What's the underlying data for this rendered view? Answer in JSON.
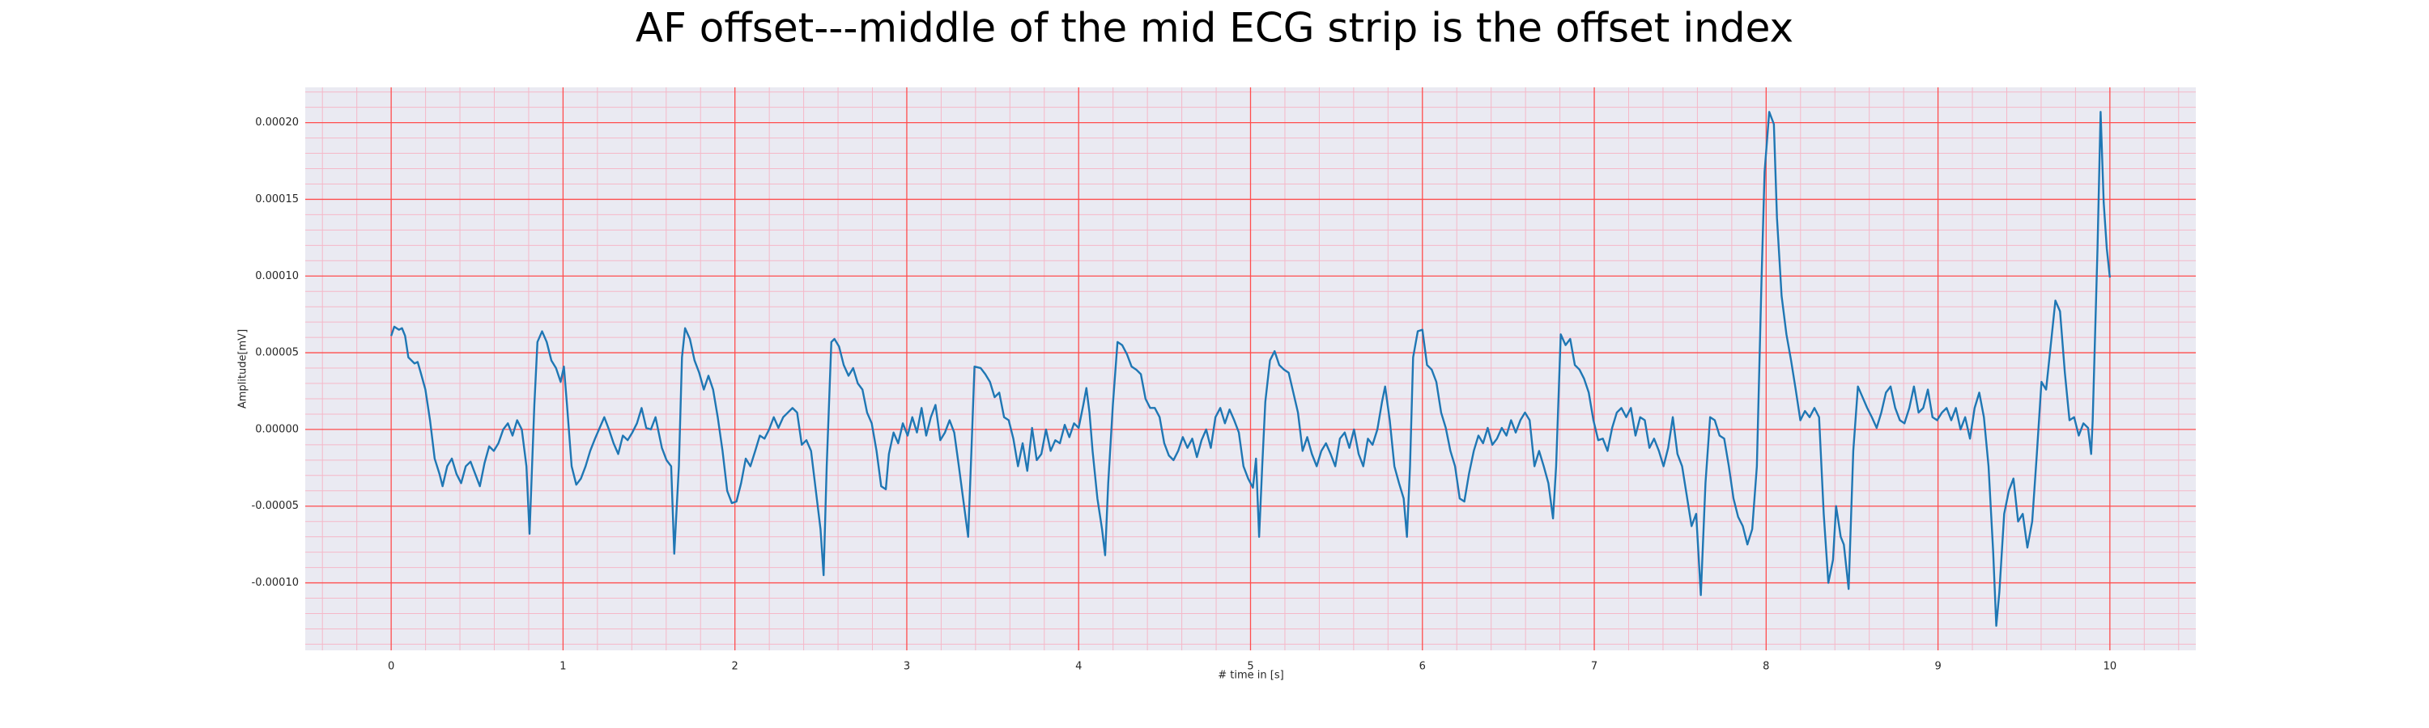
{
  "chart_data": {
    "type": "line",
    "title": "AF offset---middle of the mid ECG strip is the offset index",
    "xlabel": "# time in [s]",
    "ylabel": "Amplitude[mV]",
    "color": "#1f77b4",
    "major_grid_color": "#ff4d4d",
    "minor_grid_color": "#f5b8c8",
    "grid": true,
    "minor_grid": true,
    "xlim": [
      -0.5,
      10.5
    ],
    "ylim": [
      -0.000144,
      0.000223
    ],
    "xticks": [
      0,
      1,
      2,
      3,
      4,
      5,
      6,
      7,
      8,
      9,
      10
    ],
    "yticks": [
      {
        "value": -0.0001,
        "label": "-0.00010"
      },
      {
        "value": -5e-05,
        "label": "-0.00005"
      },
      {
        "value": 0,
        "label": "0.00000"
      },
      {
        "value": 5e-05,
        "label": "0.00005"
      },
      {
        "value": 0.0001,
        "label": "0.00010"
      },
      {
        "value": 0.00015,
        "label": "0.00015"
      },
      {
        "value": 0.0002,
        "label": "0.00020"
      }
    ],
    "x": [
      0,
      0.018,
      0.045,
      0.063,
      0.081,
      0.1,
      0.118,
      0.136,
      0.154,
      0.172,
      0.199,
      0.226,
      0.253,
      0.281,
      0.299,
      0.326,
      0.353,
      0.38,
      0.407,
      0.434,
      0.462,
      0.489,
      0.516,
      0.543,
      0.57,
      0.597,
      0.624,
      0.652,
      0.679,
      0.706,
      0.733,
      0.76,
      0.787,
      0.805,
      0.833,
      0.851,
      0.878,
      0.905,
      0.932,
      0.959,
      0.986,
      1.005,
      1.023,
      1.05,
      1.077,
      1.104,
      1.131,
      1.158,
      1.186,
      1.213,
      1.24,
      1.267,
      1.294,
      1.321,
      1.348,
      1.376,
      1.403,
      1.43,
      1.457,
      1.484,
      1.511,
      1.538,
      1.575,
      1.602,
      1.629,
      1.647,
      1.674,
      1.692,
      1.71,
      1.738,
      1.765,
      1.792,
      1.819,
      1.846,
      1.873,
      1.9,
      1.928,
      1.955,
      1.982,
      2.009,
      2.036,
      2.063,
      2.09,
      2.118,
      2.145,
      2.172,
      2.199,
      2.226,
      2.253,
      2.281,
      2.308,
      2.335,
      2.362,
      2.389,
      2.416,
      2.443,
      2.471,
      2.498,
      2.516,
      2.534,
      2.561,
      2.579,
      2.606,
      2.633,
      2.661,
      2.688,
      2.715,
      2.742,
      2.769,
      2.796,
      2.824,
      2.851,
      2.878,
      2.896,
      2.923,
      2.95,
      2.977,
      3.005,
      3.032,
      3.059,
      3.086,
      3.113,
      3.14,
      3.167,
      3.195,
      3.222,
      3.249,
      3.276,
      3.303,
      3.33,
      3.357,
      3.376,
      3.394,
      3.43,
      3.457,
      3.484,
      3.511,
      3.538,
      3.566,
      3.593,
      3.62,
      3.647,
      3.674,
      3.701,
      3.729,
      3.756,
      3.783,
      3.81,
      3.837,
      3.864,
      3.891,
      3.919,
      3.946,
      3.973,
      4.0,
      4.027,
      4.045,
      4.063,
      4.081,
      4.109,
      4.136,
      4.154,
      4.172,
      4.199,
      4.226,
      4.253,
      4.281,
      4.308,
      4.335,
      4.362,
      4.389,
      4.416,
      4.443,
      4.471,
      4.498,
      4.525,
      4.552,
      4.579,
      4.606,
      4.633,
      4.661,
      4.688,
      4.715,
      4.742,
      4.769,
      4.796,
      4.824,
      4.851,
      4.878,
      4.905,
      4.932,
      4.959,
      4.986,
      5.014,
      5.032,
      5.05,
      5.068,
      5.086,
      5.113,
      5.14,
      5.167,
      5.195,
      5.222,
      5.249,
      5.276,
      5.303,
      5.33,
      5.357,
      5.385,
      5.412,
      5.439,
      5.466,
      5.493,
      5.52,
      5.548,
      5.575,
      5.602,
      5.629,
      5.656,
      5.683,
      5.71,
      5.738,
      5.765,
      5.783,
      5.81,
      5.837,
      5.864,
      5.891,
      5.91,
      5.928,
      5.946,
      5.973,
      6.0,
      6.027,
      6.054,
      6.081,
      6.109,
      6.136,
      6.163,
      6.19,
      6.217,
      6.244,
      6.271,
      6.299,
      6.326,
      6.353,
      6.38,
      6.407,
      6.434,
      6.462,
      6.489,
      6.516,
      6.543,
      6.57,
      6.597,
      6.624,
      6.652,
      6.679,
      6.706,
      6.733,
      6.76,
      6.778,
      6.805,
      6.833,
      6.86,
      6.887,
      6.914,
      6.941,
      6.968,
      6.995,
      7.023,
      7.05,
      7.077,
      7.104,
      7.131,
      7.158,
      7.186,
      7.213,
      7.24,
      7.267,
      7.294,
      7.321,
      7.348,
      7.376,
      7.403,
      7.43,
      7.457,
      7.484,
      7.511,
      7.538,
      7.566,
      7.593,
      7.62,
      7.647,
      7.674,
      7.701,
      7.729,
      7.756,
      7.783,
      7.81,
      7.837,
      7.864,
      7.891,
      7.919,
      7.946,
      7.973,
      7.991,
      8.018,
      8.045,
      8.063,
      8.09,
      8.118,
      8.145,
      8.172,
      8.199,
      8.226,
      8.253,
      8.281,
      8.308,
      8.335,
      8.362,
      8.389,
      8.407,
      8.434,
      8.452,
      8.48,
      8.507,
      8.534,
      8.561,
      8.588,
      8.615,
      8.643,
      8.67,
      8.697,
      8.724,
      8.751,
      8.778,
      8.805,
      8.833,
      8.86,
      8.887,
      8.914,
      8.941,
      8.968,
      8.995,
      9.023,
      9.05,
      9.077,
      9.104,
      9.131,
      9.158,
      9.186,
      9.213,
      9.24,
      9.267,
      9.294,
      9.321,
      9.339,
      9.357,
      9.385,
      9.412,
      9.439,
      9.466,
      9.493,
      9.52,
      9.548,
      9.575,
      9.602,
      9.629,
      9.656,
      9.683,
      9.71,
      9.738,
      9.765,
      9.792,
      9.819,
      9.846,
      9.873,
      9.891,
      9.9,
      9.928,
      9.946,
      9.964,
      9.982,
      10.0
    ],
    "values": [
      6.1e-05,
      6.7e-05,
      6.5e-05,
      6.6e-05,
      6.1e-05,
      4.7e-05,
      4.5e-05,
      4.3e-05,
      4.4e-05,
      3.7e-05,
      2.6e-05,
      6e-06,
      -1.9e-05,
      -2.9e-05,
      -3.7e-05,
      -2.4e-05,
      -1.9e-05,
      -2.9e-05,
      -3.5e-05,
      -2.4e-05,
      -2.1e-05,
      -2.9e-05,
      -3.7e-05,
      -2.2e-05,
      -1.1e-05,
      -1.4e-05,
      -9e-06,
      0,
      4e-06,
      -4e-06,
      6e-06,
      0,
      -2.4e-05,
      -6.8e-05,
      1.6e-05,
      5.7e-05,
      6.4e-05,
      5.7e-05,
      4.5e-05,
      4e-05,
      3.1e-05,
      4.1e-05,
      1.6e-05,
      -2.4e-05,
      -3.6e-05,
      -3.2e-05,
      -2.4e-05,
      -1.4e-05,
      -6e-06,
      1e-06,
      8e-06,
      0,
      -9e-06,
      -1.6e-05,
      -4e-06,
      -7e-06,
      -2e-06,
      4e-06,
      1.4e-05,
      1e-06,
      0,
      8e-06,
      -1.2e-05,
      -2e-05,
      -2.4e-05,
      -8.1e-05,
      -2.4e-05,
      4.7e-05,
      6.6e-05,
      5.9e-05,
      4.5e-05,
      3.7e-05,
      2.6e-05,
      3.5e-05,
      2.6e-05,
      8e-06,
      -1.4e-05,
      -4e-05,
      -4.8e-05,
      -4.7e-05,
      -3.5e-05,
      -1.9e-05,
      -2.4e-05,
      -1.4e-05,
      -4e-06,
      -6e-06,
      0,
      8e-06,
      1e-06,
      8e-06,
      1.1e-05,
      1.4e-05,
      1.1e-05,
      -1e-05,
      -7e-06,
      -1.4e-05,
      -4e-05,
      -6.5e-05,
      -9.5e-05,
      -2.4e-05,
      5.7e-05,
      5.9e-05,
      5.4e-05,
      4.2e-05,
      3.5e-05,
      4e-05,
      3e-05,
      2.6e-05,
      1.1e-05,
      4e-06,
      -1.4e-05,
      -3.7e-05,
      -3.9e-05,
      -1.6e-05,
      -2e-06,
      -9e-06,
      4e-06,
      -4e-06,
      8e-06,
      -2e-06,
      1.4e-05,
      -4e-06,
      8e-06,
      1.6e-05,
      -7e-06,
      -2e-06,
      6e-06,
      -2e-06,
      -2.4e-05,
      -4.7e-05,
      -7e-05,
      -1.4e-05,
      4.1e-05,
      4e-05,
      3.6e-05,
      3.1e-05,
      2.1e-05,
      2.4e-05,
      8e-06,
      6e-06,
      -6e-06,
      -2.4e-05,
      -9e-06,
      -2.7e-05,
      1e-06,
      -2e-05,
      -1.6e-05,
      0,
      -1.4e-05,
      -7e-06,
      -9e-06,
      3e-06,
      -5e-06,
      4e-06,
      1e-06,
      1.6e-05,
      2.7e-05,
      1.1e-05,
      -1.4e-05,
      -4.5e-05,
      -6.5e-05,
      -8.2e-05,
      -3.5e-05,
      1.6e-05,
      5.7e-05,
      5.5e-05,
      4.9e-05,
      4.1e-05,
      3.9e-05,
      3.6e-05,
      2e-05,
      1.4e-05,
      1.4e-05,
      8e-06,
      -9e-06,
      -1.7e-05,
      -2e-05,
      -1.4e-05,
      -5e-06,
      -1.2e-05,
      -6e-06,
      -1.8e-05,
      -7e-06,
      0,
      -1.2e-05,
      8e-06,
      1.4e-05,
      4e-06,
      1.3e-05,
      6e-06,
      -2e-06,
      -2.4e-05,
      -3.2e-05,
      -3.8e-05,
      -1.9e-05,
      -7e-05,
      -2.4e-05,
      1.8e-05,
      4.5e-05,
      5.1e-05,
      4.2e-05,
      3.9e-05,
      3.7e-05,
      2.4e-05,
      1.1e-05,
      -1.4e-05,
      -5e-06,
      -1.6e-05,
      -2.4e-05,
      -1.4e-05,
      -9e-06,
      -1.6e-05,
      -2.4e-05,
      -6e-06,
      -2e-06,
      -1.2e-05,
      0,
      -1.6e-05,
      -2.4e-05,
      -6e-06,
      -1e-05,
      0,
      1.8e-05,
      2.8e-05,
      6e-06,
      -2.4e-05,
      -3.5e-05,
      -4.5e-05,
      -7e-05,
      -2.4e-05,
      4.7e-05,
      6.4e-05,
      6.5e-05,
      4.2e-05,
      3.9e-05,
      3.1e-05,
      1.1e-05,
      1e-06,
      -1.4e-05,
      -2.4e-05,
      -4.5e-05,
      -4.7e-05,
      -2.9e-05,
      -1.4e-05,
      -4e-06,
      -9e-06,
      1e-06,
      -1e-05,
      -6e-06,
      1e-06,
      -4e-06,
      6e-06,
      -2e-06,
      6e-06,
      1.1e-05,
      6e-06,
      -2.4e-05,
      -1.4e-05,
      -2.4e-05,
      -3.5e-05,
      -5.8e-05,
      -2.4e-05,
      6.2e-05,
      5.5e-05,
      5.9e-05,
      4.2e-05,
      3.9e-05,
      3.3e-05,
      2.4e-05,
      6e-06,
      -7e-06,
      -6e-06,
      -1.4e-05,
      1e-06,
      1.1e-05,
      1.4e-05,
      8e-06,
      1.4e-05,
      -4e-06,
      8e-06,
      6e-06,
      -1.2e-05,
      -6e-06,
      -1.4e-05,
      -2.4e-05,
      -1.2e-05,
      8e-06,
      -1.6e-05,
      -2.4e-05,
      -4.3e-05,
      -6.3e-05,
      -5.5e-05,
      -0.000108,
      -3.5e-05,
      8e-06,
      6e-06,
      -4e-06,
      -6e-06,
      -2.4e-05,
      -4.5e-05,
      -5.7e-05,
      -6.3e-05,
      -7.5e-05,
      -6.5e-05,
      -2.4e-05,
      9.7e-05,
      0.000168,
      0.000207,
      0.000199,
      0.000138,
      8.7e-05,
      6.2e-05,
      4.5e-05,
      2.6e-05,
      6e-06,
      1.2e-05,
      8e-06,
      1.4e-05,
      8e-06,
      -5.5e-05,
      -0.0001,
      -8.5e-05,
      -5e-05,
      -7e-05,
      -7.5e-05,
      -0.000104,
      -1.4e-05,
      2.8e-05,
      2.1e-05,
      1.4e-05,
      8e-06,
      1e-06,
      1.1e-05,
      2.4e-05,
      2.8e-05,
      1.4e-05,
      6e-06,
      4e-06,
      1.4e-05,
      2.8e-05,
      1.1e-05,
      1.4e-05,
      2.6e-05,
      8e-06,
      6e-06,
      1.1e-05,
      1.4e-05,
      6e-06,
      1.4e-05,
      0,
      8e-06,
      -6e-06,
      1.4e-05,
      2.4e-05,
      8e-06,
      -2.4e-05,
      -8e-05,
      -0.000128,
      -0.000106,
      -5.5e-05,
      -4e-05,
      -3.2e-05,
      -6e-05,
      -5.5e-05,
      -7.7e-05,
      -6e-05,
      -1.6e-05,
      3.1e-05,
      2.6e-05,
      5.5e-05,
      8.4e-05,
      7.7e-05,
      3.7e-05,
      6e-06,
      8e-06,
      -4e-06,
      4e-06,
      1e-06,
      -1.6e-05,
      6e-06,
      0.000118,
      0.000207,
      0.000148,
      0.000118,
      9.9e-05
    ]
  }
}
